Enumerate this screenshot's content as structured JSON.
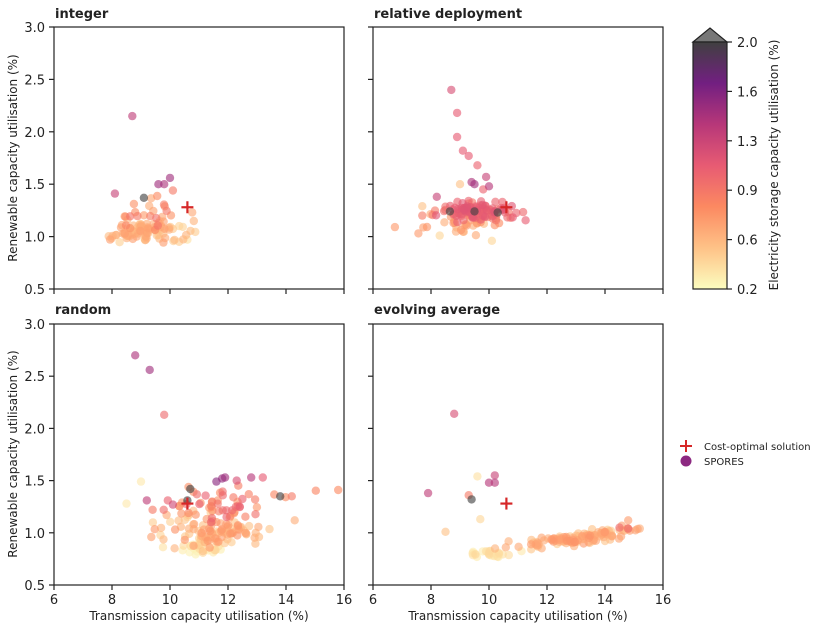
{
  "chart_data": {
    "type": "scatter",
    "xlabel": "Transmission capacity utilisation (%)",
    "ylabel": "Renewable capacity utilisation (%)",
    "xlim": [
      6,
      16
    ],
    "ylim": [
      0.5,
      3.0
    ],
    "xticks": [
      "6",
      "8",
      "10",
      "12",
      "14",
      "16"
    ],
    "yticks": [
      "0.5",
      "1.0",
      "1.5",
      "2.0",
      "2.5",
      "3.0"
    ],
    "colorbar": {
      "label": "Electricity storage capacity utilisation  (%)",
      "range": [
        0.2,
        2.0
      ],
      "ticks": [
        "0.2",
        "0.6",
        "0.9",
        "1.3",
        "1.6",
        "2.0"
      ],
      "colors": [
        "#fcfdbf",
        "#fec287",
        "#fc8961",
        "#e75b73",
        "#b73779",
        "#721f81",
        "#404040"
      ]
    },
    "legend": [
      {
        "label": "Cost-optimal solution",
        "marker": "plus",
        "color": "#d62728"
      },
      {
        "label": "SPORES",
        "marker": "circle",
        "color": "#8c2981"
      }
    ],
    "cost_optimal": {
      "x": 10.6,
      "y": 1.28
    },
    "panels": [
      {
        "title": "integer",
        "seed": 11,
        "clusters": [
          {
            "cx": 9.2,
            "cy": 1.05,
            "sx": 0.7,
            "sy": 0.05,
            "n": 95,
            "s0": 0.4,
            "s1": 0.7
          },
          {
            "cx": 9.4,
            "cy": 1.22,
            "sx": 0.6,
            "sy": 0.08,
            "n": 25,
            "s0": 0.6,
            "s1": 0.95
          }
        ],
        "points": [
          {
            "x": 8.7,
            "y": 2.15,
            "s": 1.35
          },
          {
            "x": 9.1,
            "y": 1.37,
            "s": 2.0
          },
          {
            "x": 9.6,
            "y": 1.5,
            "s": 1.5
          },
          {
            "x": 9.8,
            "y": 1.5,
            "s": 1.45
          },
          {
            "x": 10.0,
            "y": 1.56,
            "s": 1.5
          },
          {
            "x": 8.1,
            "y": 1.41,
            "s": 1.3
          },
          {
            "x": 10.6,
            "y": 0.97,
            "s": 0.35
          },
          {
            "x": 10.1,
            "y": 1.44,
            "s": 0.9
          }
        ]
      },
      {
        "title": "relative deployment",
        "seed": 23,
        "clusters": [
          {
            "cx": 9.6,
            "cy": 1.24,
            "sx": 0.65,
            "sy": 0.04,
            "n": 110,
            "s0": 0.9,
            "s1": 1.15
          },
          {
            "cx": 9.3,
            "cy": 1.12,
            "sx": 0.7,
            "sy": 0.06,
            "n": 35,
            "s0": 0.5,
            "s1": 0.8
          }
        ],
        "points": [
          {
            "x": 8.7,
            "y": 2.4,
            "s": 1.2
          },
          {
            "x": 8.9,
            "y": 2.18,
            "s": 1.1
          },
          {
            "x": 8.9,
            "y": 1.95,
            "s": 1.1
          },
          {
            "x": 9.1,
            "y": 1.82,
            "s": 1.1
          },
          {
            "x": 9.3,
            "y": 1.77,
            "s": 1.1
          },
          {
            "x": 9.6,
            "y": 1.68,
            "s": 1.05
          },
          {
            "x": 9.9,
            "y": 1.57,
            "s": 1.3
          },
          {
            "x": 10.0,
            "y": 1.48,
            "s": 1.4
          },
          {
            "x": 9.4,
            "y": 1.52,
            "s": 1.45
          },
          {
            "x": 9.5,
            "y": 1.5,
            "s": 1.5
          },
          {
            "x": 9.8,
            "y": 1.45,
            "s": 1.05
          },
          {
            "x": 9.0,
            "y": 1.5,
            "s": 0.5
          },
          {
            "x": 8.2,
            "y": 1.38,
            "s": 1.3
          },
          {
            "x": 8.65,
            "y": 1.24,
            "s": 2.0
          },
          {
            "x": 9.5,
            "y": 1.24,
            "s": 2.0
          },
          {
            "x": 10.3,
            "y": 1.23,
            "s": 2.0
          },
          {
            "x": 7.7,
            "y": 1.2,
            "s": 0.9
          },
          {
            "x": 7.7,
            "y": 1.29,
            "s": 0.5
          },
          {
            "x": 8.3,
            "y": 1.01,
            "s": 0.4
          },
          {
            "x": 10.1,
            "y": 0.96,
            "s": 0.4
          }
        ]
      },
      {
        "title": "random",
        "seed": 37,
        "clusters": [
          {
            "cx": 11.6,
            "cy": 1.0,
            "sx": 0.9,
            "sy": 0.08,
            "n": 100,
            "s0": 0.4,
            "s1": 0.75
          },
          {
            "cx": 11.7,
            "cy": 1.25,
            "sx": 1.1,
            "sy": 0.09,
            "n": 55,
            "s0": 0.7,
            "s1": 1.1
          },
          {
            "cx": 11.0,
            "cy": 0.85,
            "sx": 0.4,
            "sy": 0.03,
            "n": 25,
            "s0": 0.25,
            "s1": 0.4
          }
        ],
        "points": [
          {
            "x": 8.8,
            "y": 2.7,
            "s": 1.45
          },
          {
            "x": 9.3,
            "y": 2.56,
            "s": 1.5
          },
          {
            "x": 9.8,
            "y": 2.13,
            "s": 1.0
          },
          {
            "x": 11.6,
            "y": 1.49,
            "s": 1.6
          },
          {
            "x": 11.8,
            "y": 1.52,
            "s": 1.55
          },
          {
            "x": 11.9,
            "y": 1.53,
            "s": 1.5
          },
          {
            "x": 12.8,
            "y": 1.53,
            "s": 1.4
          },
          {
            "x": 12.3,
            "y": 1.5,
            "s": 1.2
          },
          {
            "x": 13.2,
            "y": 1.53,
            "s": 1.1
          },
          {
            "x": 13.8,
            "y": 1.35,
            "s": 2.0
          },
          {
            "x": 10.6,
            "y": 1.31,
            "s": 2.0
          },
          {
            "x": 10.7,
            "y": 1.42,
            "s": 2.0
          },
          {
            "x": 9.2,
            "y": 1.31,
            "s": 1.35
          },
          {
            "x": 10.1,
            "y": 1.27,
            "s": 1.25
          },
          {
            "x": 14.2,
            "y": 1.35,
            "s": 0.9
          },
          {
            "x": 14.3,
            "y": 1.12,
            "s": 0.6
          },
          {
            "x": 15.8,
            "y": 1.41,
            "s": 0.8
          },
          {
            "x": 8.5,
            "y": 1.28,
            "s": 0.3
          },
          {
            "x": 9.0,
            "y": 1.49,
            "s": 0.3
          },
          {
            "x": 9.4,
            "y": 1.22,
            "s": 0.9
          }
        ]
      },
      {
        "title": "evolving average",
        "seed": 53,
        "clusters": [
          {
            "cx": 13.0,
            "cy": 0.95,
            "sx": 1.1,
            "sy": 0.03,
            "n": 120,
            "s0": 0.45,
            "s1": 0.75,
            "slope": 0.038
          },
          {
            "cx": 10.0,
            "cy": 0.8,
            "sx": 0.5,
            "sy": 0.02,
            "n": 25,
            "s0": 0.25,
            "s1": 0.4
          }
        ],
        "points": [
          {
            "x": 8.8,
            "y": 2.14,
            "s": 1.2
          },
          {
            "x": 7.9,
            "y": 1.38,
            "s": 1.35
          },
          {
            "x": 9.4,
            "y": 1.32,
            "s": 2.0
          },
          {
            "x": 10.2,
            "y": 1.55,
            "s": 1.3
          },
          {
            "x": 10.0,
            "y": 1.48,
            "s": 1.4
          },
          {
            "x": 10.2,
            "y": 1.48,
            "s": 1.4
          },
          {
            "x": 9.6,
            "y": 1.54,
            "s": 0.35
          },
          {
            "x": 9.3,
            "y": 1.36,
            "s": 0.9
          },
          {
            "x": 8.5,
            "y": 1.01,
            "s": 0.5
          },
          {
            "x": 9.7,
            "y": 1.13,
            "s": 0.4
          },
          {
            "x": 14.5,
            "y": 1.05,
            "s": 1.0
          },
          {
            "x": 14.8,
            "y": 1.04,
            "s": 1.0
          },
          {
            "x": 14.8,
            "y": 1.12,
            "s": 0.7
          },
          {
            "x": 15.2,
            "y": 1.04,
            "s": 0.6
          }
        ]
      }
    ]
  }
}
